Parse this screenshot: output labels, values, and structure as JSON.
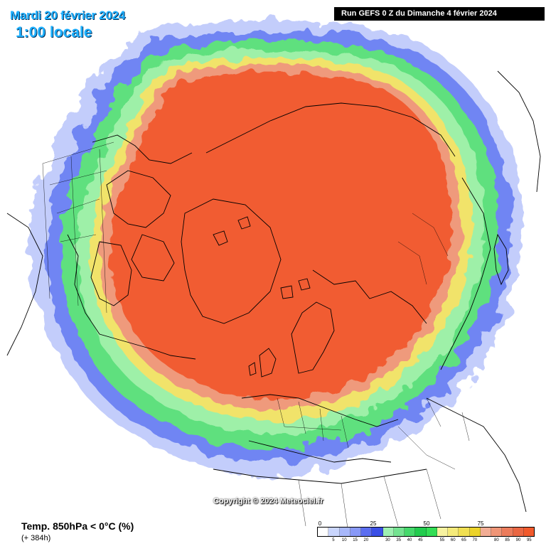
{
  "header": {
    "date": "Mardi 20 février 2024",
    "time": "1:00 locale",
    "run": "Run GEFS 0 Z du Dimanche 4 février 2024"
  },
  "footer": {
    "copyright": "Copyright © 2024 Meteociel.fr",
    "variable": "Temp. 850hPa < 0°C (%)",
    "lead_time": "(+ 384h)"
  },
  "legend": {
    "major_labels": [
      "0",
      "25",
      "50",
      "75"
    ],
    "minor_labels": [
      "",
      "5",
      "10",
      "15",
      "20",
      "",
      "30",
      "35",
      "40",
      "45",
      "",
      "55",
      "60",
      "65",
      "70",
      "",
      "80",
      "85",
      "90",
      "95"
    ],
    "colors": [
      "#ffffff",
      "#c9d5fc",
      "#a8b8fb",
      "#8899f7",
      "#5b6ef0",
      "#3a4fe6",
      "#9ff0b2",
      "#74e391",
      "#45d96b",
      "#22cc4e",
      "#33dd55",
      "#f7f2a0",
      "#f4ea7a",
      "#f0df52",
      "#ecd32a",
      "#f2ad95",
      "#ef9577",
      "#ec7c5c",
      "#ea6743",
      "#f15a2c"
    ]
  },
  "map_colors": {
    "outer_blue": "#c3cdfb",
    "blue": "#6f85f3",
    "deep_blue": "#3d55ea",
    "green": "#5ee07e",
    "light_green": "#9ef0a8",
    "yellow": "#f1e36a",
    "salmon": "#ef9a7c",
    "orange_red": "#f15c30",
    "coastline": "#000000"
  }
}
